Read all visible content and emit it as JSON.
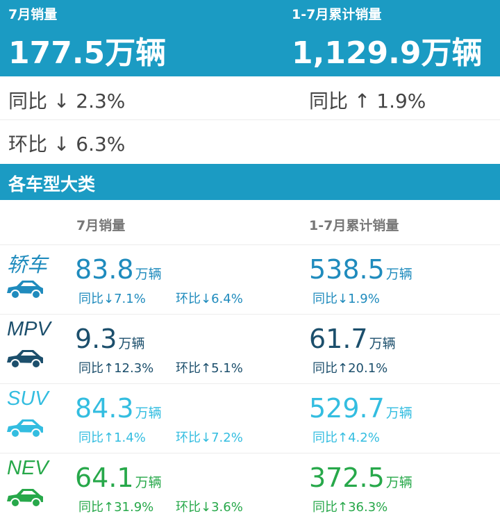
{
  "summary": {
    "month": {
      "label": "7月销量",
      "value": "177.5",
      "unit": "万辆",
      "yoy": "同比 ↓ 2.3%",
      "mom": "环比 ↓ 6.3%"
    },
    "ytd": {
      "label": "1-7月累计销量",
      "value": "1,129.9",
      "unit": "万辆",
      "yoy": "同比 ↑ 1.9%"
    }
  },
  "section_title": "各车型大类",
  "columns": [
    "7月销量",
    "1-7月累计销量"
  ],
  "rows": [
    {
      "name": "轿车",
      "month": {
        "value": "83.8",
        "unit": "万辆",
        "yoy": "同比↓7.1%",
        "mom": "环比↓6.4%"
      },
      "ytd": {
        "value": "538.5",
        "unit": "万辆",
        "yoy": "同比↓1.9%"
      }
    },
    {
      "name": "MPV",
      "month": {
        "value": "9.3",
        "unit": "万辆",
        "yoy": "同比↑12.3%",
        "mom": "环比↑5.1%"
      },
      "ytd": {
        "value": "61.7",
        "unit": "万辆",
        "yoy": "同比↑20.1%"
      }
    },
    {
      "name": "SUV",
      "month": {
        "value": "84.3",
        "unit": "万辆",
        "yoy": "同比↑1.4%",
        "mom": "环比↓7.2%"
      },
      "ytd": {
        "value": "529.7",
        "unit": "万辆",
        "yoy": "同比↑4.2%"
      }
    },
    {
      "name": "NEV",
      "month": {
        "value": "64.1",
        "unit": "万辆",
        "yoy": "同比↑31.9%",
        "mom": "环比↓3.6%"
      },
      "ytd": {
        "value": "372.5",
        "unit": "万辆",
        "yoy": "同比↑36.3%"
      }
    }
  ]
}
